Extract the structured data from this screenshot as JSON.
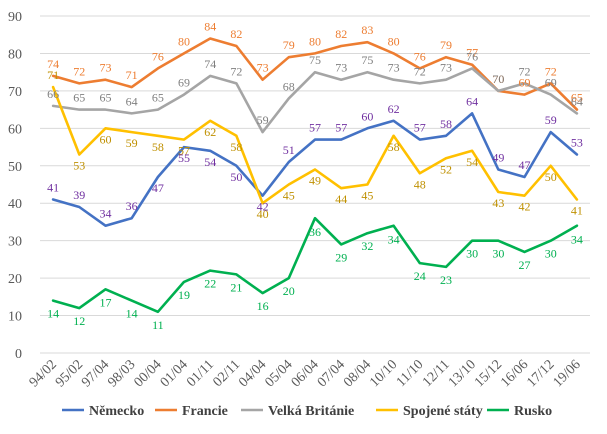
{
  "chart_data": {
    "type": "line",
    "title": "",
    "xlabel": "",
    "ylabel": "",
    "ylim": [
      0,
      90
    ],
    "yticks": [
      0,
      10,
      20,
      30,
      40,
      50,
      60,
      70,
      80,
      90
    ],
    "grid": "horizontal",
    "legend_position": "bottom",
    "categories": [
      "94/02",
      "95/02",
      "97/04",
      "98/03",
      "00/04",
      "01/04",
      "01/11",
      "02/11",
      "04/04",
      "05/04",
      "06/04",
      "07/04",
      "08/04",
      "10/10",
      "11/10",
      "12/11",
      "13/10",
      "15/12",
      "16/06",
      "17/12",
      "19/06"
    ],
    "series": [
      {
        "name": "Německo",
        "color": "#4472C4",
        "label_color": "#7030A0",
        "values": [
          41,
          39,
          34,
          36,
          47,
          55,
          54,
          50,
          42,
          51,
          57,
          57,
          60,
          62,
          57,
          58,
          64,
          49,
          47,
          59,
          53
        ]
      },
      {
        "name": "Francie",
        "color": "#ED7D31",
        "label_color": "#ED7D31",
        "values": [
          74,
          72,
          73,
          71,
          76,
          80,
          84,
          82,
          73,
          79,
          80,
          82,
          83,
          80,
          76,
          79,
          77,
          70,
          69,
          72,
          65
        ]
      },
      {
        "name": "Velká Británie",
        "color": "#A5A5A5",
        "label_color": "#7F7F7F",
        "values": [
          66,
          65,
          65,
          64,
          65,
          69,
          74,
          72,
          59,
          68,
          75,
          73,
          75,
          73,
          72,
          73,
          76,
          70,
          72,
          69,
          64
        ]
      },
      {
        "name": "Spojené státy",
        "color": "#FFC000",
        "label_color": "#BF9000",
        "values": [
          71,
          53,
          60,
          59,
          58,
          57,
          62,
          58,
          40,
          45,
          49,
          44,
          45,
          58,
          48,
          52,
          54,
          43,
          42,
          50,
          41
        ]
      },
      {
        "name": "Rusko",
        "color": "#00B050",
        "label_color": "#00B050",
        "values": [
          14,
          12,
          17,
          14,
          11,
          19,
          22,
          21,
          16,
          20,
          36,
          29,
          32,
          34,
          24,
          23,
          30,
          30,
          27,
          30,
          34
        ]
      }
    ]
  }
}
